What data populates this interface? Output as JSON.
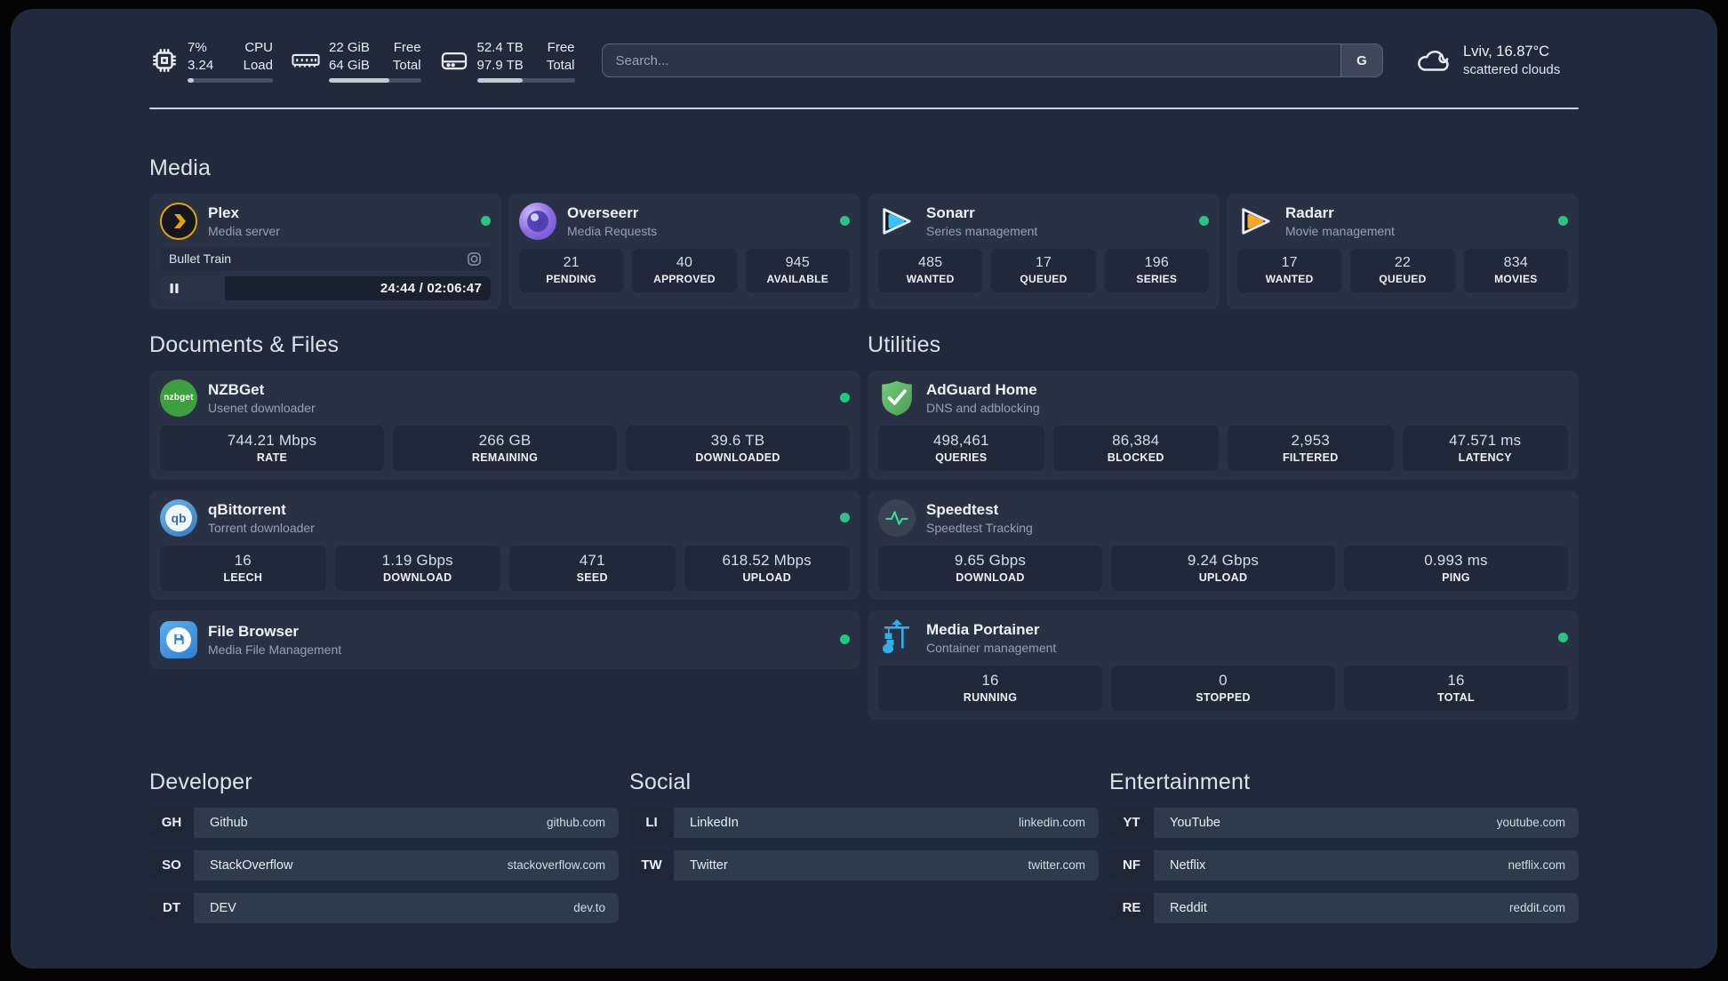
{
  "topbar": {
    "cpu": {
      "value_top": "7%",
      "value_bottom": "3.24",
      "label_top": "CPU",
      "label_bottom": "Load",
      "progress": 7
    },
    "ram": {
      "value_top": "22 GiB",
      "value_bottom": "64 GiB",
      "label_top": "Free",
      "label_bottom": "Total",
      "progress": 66
    },
    "disk": {
      "value_top": "52.4 TB",
      "value_bottom": "97.9 TB",
      "label_top": "Free",
      "label_bottom": "Total",
      "progress": 47
    },
    "search": {
      "placeholder": "Search...",
      "engine_button": "G"
    },
    "weather": {
      "title": "Lviv, 16.87°C",
      "subtitle": "scattered clouds"
    }
  },
  "sections": {
    "media": "Media",
    "documents": "Documents & Files",
    "utilities": "Utilities",
    "developer": "Developer",
    "social": "Social",
    "entertainment": "Entertainment"
  },
  "apps": {
    "plex": {
      "name": "Plex",
      "desc": "Media server",
      "player": {
        "title": "Bullet Train",
        "time": "24:44 / 02:06:47",
        "progress": 19.5
      }
    },
    "overseerr": {
      "name": "Overseerr",
      "desc": "Media Requests",
      "stats": [
        {
          "value": "21",
          "label": "PENDING"
        },
        {
          "value": "40",
          "label": "APPROVED"
        },
        {
          "value": "945",
          "label": "AVAILABLE"
        }
      ]
    },
    "sonarr": {
      "name": "Sonarr",
      "desc": "Series management",
      "stats": [
        {
          "value": "485",
          "label": "WANTED"
        },
        {
          "value": "17",
          "label": "QUEUED"
        },
        {
          "value": "196",
          "label": "SERIES"
        }
      ]
    },
    "radarr": {
      "name": "Radarr",
      "desc": "Movie management",
      "stats": [
        {
          "value": "17",
          "label": "WANTED"
        },
        {
          "value": "22",
          "label": "QUEUED"
        },
        {
          "value": "834",
          "label": "MOVIES"
        }
      ]
    },
    "nzbget": {
      "name": "NZBGet",
      "desc": "Usenet downloader",
      "icon_text": "nzbget",
      "stats": [
        {
          "value": "744.21 Mbps",
          "label": "RATE"
        },
        {
          "value": "266 GB",
          "label": "REMAINING"
        },
        {
          "value": "39.6 TB",
          "label": "DOWNLOADED"
        }
      ]
    },
    "qbittorrent": {
      "name": "qBittorrent",
      "desc": "Torrent downloader",
      "icon_text": "qb",
      "stats": [
        {
          "value": "16",
          "label": "LEECH"
        },
        {
          "value": "1.19 Gbps",
          "label": "DOWNLOAD"
        },
        {
          "value": "471",
          "label": "SEED"
        },
        {
          "value": "618.52 Mbps",
          "label": "UPLOAD"
        }
      ]
    },
    "filebrowser": {
      "name": "File Browser",
      "desc": "Media File Management"
    },
    "adguard": {
      "name": "AdGuard Home",
      "desc": "DNS and adblocking",
      "stats": [
        {
          "value": "498,461",
          "label": "QUERIES"
        },
        {
          "value": "86,384",
          "label": "BLOCKED"
        },
        {
          "value": "2,953",
          "label": "FILTERED"
        },
        {
          "value": "47.571 ms",
          "label": "LATENCY"
        }
      ]
    },
    "speedtest": {
      "name": "Speedtest",
      "desc": "Speedtest Tracking",
      "stats": [
        {
          "value": "9.65 Gbps",
          "label": "DOWNLOAD"
        },
        {
          "value": "9.24 Gbps",
          "label": "UPLOAD"
        },
        {
          "value": "0.993 ms",
          "label": "PING"
        }
      ]
    },
    "portainer": {
      "name": "Media Portainer",
      "desc": "Container management",
      "stats": [
        {
          "value": "16",
          "label": "RUNNING"
        },
        {
          "value": "0",
          "label": "STOPPED"
        },
        {
          "value": "16",
          "label": "TOTAL"
        }
      ]
    }
  },
  "bookmarks": {
    "developer": [
      {
        "abbr": "GH",
        "name": "Github",
        "url": "github.com"
      },
      {
        "abbr": "SO",
        "name": "StackOverflow",
        "url": "stackoverflow.com"
      },
      {
        "abbr": "DT",
        "name": "DEV",
        "url": "dev.to"
      }
    ],
    "social": [
      {
        "abbr": "LI",
        "name": "LinkedIn",
        "url": "linkedin.com"
      },
      {
        "abbr": "TW",
        "name": "Twitter",
        "url": "twitter.com"
      }
    ],
    "entertainment": [
      {
        "abbr": "YT",
        "name": "YouTube",
        "url": "youtube.com"
      },
      {
        "abbr": "NF",
        "name": "Netflix",
        "url": "netflix.com"
      },
      {
        "abbr": "RE",
        "name": "Reddit",
        "url": "reddit.com"
      }
    ]
  },
  "colors": {
    "status_online": "#27c484",
    "plex": "#e5a00d",
    "sonarr": "#35c5f4",
    "radarr": "#f7a825",
    "nzbget": "#3f9e3f",
    "qbittorrent": "#3579bd",
    "filebrowser": "#2f7fd0",
    "adguard": "#55b45e",
    "speedtest_pulse": "#2ee59d",
    "portainer": "#31b0e8"
  }
}
